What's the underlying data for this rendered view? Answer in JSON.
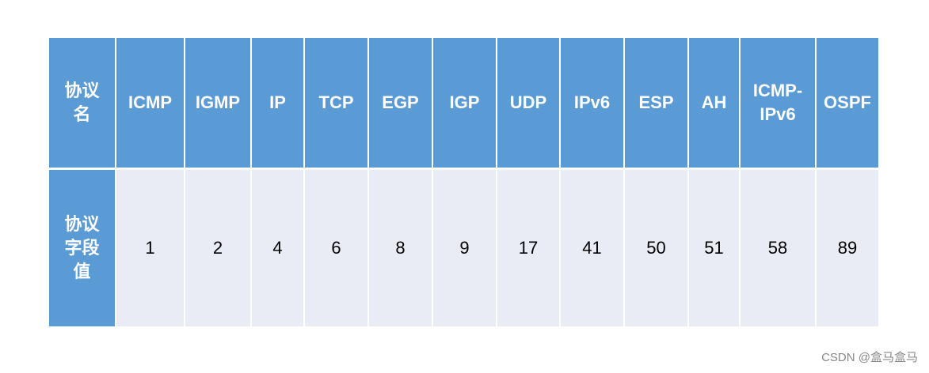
{
  "table": {
    "header": [
      "协议名",
      "ICMP",
      "IGMP",
      "IP",
      "TCP",
      "EGP",
      "IGP",
      "UDP",
      "IPv6",
      "ESP",
      "AH",
      "ICMP-IPv6",
      "OSPF"
    ],
    "rows": [
      [
        "协议字段值",
        1,
        2,
        4,
        6,
        8,
        9,
        17,
        41,
        50,
        51,
        58,
        89
      ]
    ]
  },
  "watermark": "CSDN @盒马盒马"
}
